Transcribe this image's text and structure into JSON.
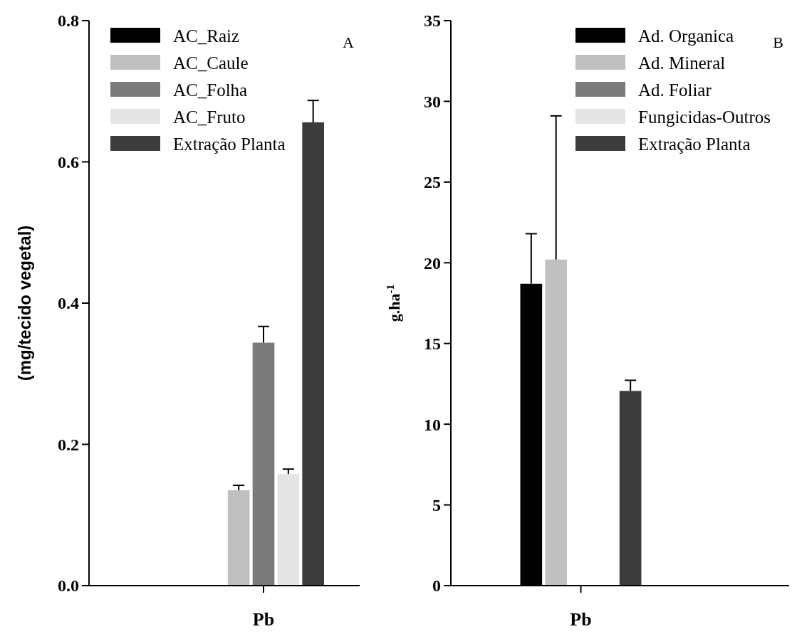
{
  "chart_data": [
    {
      "type": "bar",
      "ylabel": "(mg/tecido vegetal)",
      "categories": [
        "Pb"
      ],
      "ylim": [
        0,
        0.8
      ],
      "yticks": [
        {
          "value": 0,
          "label": "0.0"
        },
        {
          "value": 0.2,
          "label": "0.2"
        },
        {
          "value": 0.4,
          "label": "0.4"
        },
        {
          "value": 0.6,
          "label": "0.6"
        },
        {
          "value": 0.8,
          "label": "0.8"
        }
      ],
      "legend": "top left",
      "grid": false,
      "annotations": [
        "A"
      ],
      "series": [
        {
          "name": "AC_Raiz",
          "color": "#000000",
          "values": [
            null
          ],
          "errors": [
            null
          ]
        },
        {
          "name": "AC_Caule",
          "color": "#c0c0c0",
          "values": [
            0.135
          ],
          "errors": [
            0.007
          ]
        },
        {
          "name": "AC_Folha",
          "color": "#7a7a7a",
          "values": [
            0.344
          ],
          "errors": [
            0.023
          ]
        },
        {
          "name": "AC_Fruto",
          "color": "#e4e4e4",
          "values": [
            0.158
          ],
          "errors": [
            0.007
          ]
        },
        {
          "name": "Extração Planta",
          "color": "#3c3c3c",
          "values": [
            0.656
          ],
          "errors": [
            0.031
          ]
        }
      ]
    },
    {
      "type": "bar",
      "ylabel": "g.ha$^{-1}$",
      "categories": [
        "Pb"
      ],
      "ylim": [
        0,
        35
      ],
      "yticks": [
        0,
        5,
        10,
        15,
        20,
        25,
        30,
        35
      ],
      "legend": "top right",
      "grid": false,
      "annotations": [
        "B"
      ],
      "series": [
        {
          "name": "Ad. Organica",
          "color": "#000000",
          "values": [
            18.7
          ],
          "errors": [
            3.1
          ]
        },
        {
          "name": "Ad. Mineral",
          "color": "#c0c0c0",
          "values": [
            20.2
          ],
          "errors": [
            8.9
          ]
        },
        {
          "name": "Ad. Foliar",
          "color": "#7a7a7a",
          "values": [
            null
          ],
          "errors": [
            null
          ]
        },
        {
          "name": "Fungicidas-Outros",
          "color": "#e4e4e4",
          "values": [
            null
          ],
          "errors": [
            null
          ]
        },
        {
          "name": "Extração Planta",
          "color": "#3c3c3c",
          "values": [
            12.06
          ],
          "errors": [
            0.66
          ]
        }
      ]
    }
  ]
}
